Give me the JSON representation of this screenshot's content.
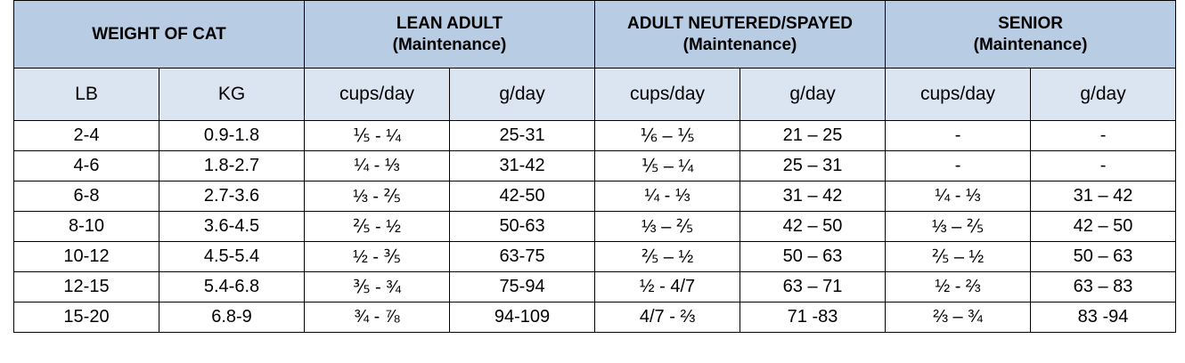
{
  "table": {
    "groups": [
      {
        "line1": "WEIGHT OF CAT",
        "line2": ""
      },
      {
        "line1": "LEAN ADULT",
        "line2": "(Maintenance)"
      },
      {
        "line1": "ADULT NEUTERED/SPAYED",
        "line2": "(Maintenance)"
      },
      {
        "line1": "SENIOR",
        "line2": "(Maintenance)"
      }
    ],
    "subheaders": [
      "LB",
      "KG",
      "cups/day",
      "g/day",
      "cups/day",
      "g/day",
      "cups/day",
      "g/day"
    ],
    "rows": [
      [
        "2-4",
        "0.9-1.8",
        "⅕ - ¼",
        "25-31",
        "⅙ – ⅕",
        "21 – 25",
        "-",
        "-"
      ],
      [
        "4-6",
        "1.8-2.7",
        "¼ - ⅓",
        "31-42",
        "⅕ – ¼",
        "25 – 31",
        "-",
        "-"
      ],
      [
        "6-8",
        "2.7-3.6",
        "⅓ - ⅖",
        "42-50",
        "¼ - ⅓",
        "31 – 42",
        "¼ - ⅓",
        "31 – 42"
      ],
      [
        "8-10",
        "3.6-4.5",
        "⅖ - ½",
        "50-63",
        "⅓ – ⅖",
        "42 – 50",
        "⅓ – ⅖",
        "42 – 50"
      ],
      [
        "10-12",
        "4.5-5.4",
        "½ - ⅗",
        "63-75",
        "⅖ – ½",
        "50 – 63",
        "⅖ – ½",
        "50 – 63"
      ],
      [
        "12-15",
        "5.4-6.8",
        "⅗ - ¾",
        "75-94",
        "½ - 4/7",
        "63 – 71",
        "½ - ⅔",
        "63 – 83"
      ],
      [
        "15-20",
        "6.8-9",
        "¾ - ⅞",
        "94-109",
        "4/7 - ⅔",
        "71 -83",
        "⅔ – ¾",
        "83 -94"
      ]
    ]
  }
}
